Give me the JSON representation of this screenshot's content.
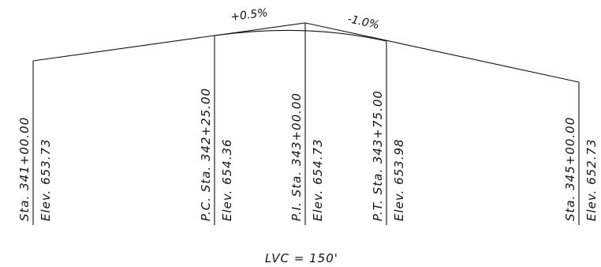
{
  "grades": {
    "back": "+0.5%",
    "forward": "-1.0%"
  },
  "stations": [
    {
      "station": "Sta. 341+00.00",
      "elevation": "Elev. 653.73"
    },
    {
      "station": "P.C. Sta. 342+25.00",
      "elevation": "Elev. 654.36"
    },
    {
      "station": "P.I. Sta. 343+00.00",
      "elevation": "Elev. 654.73"
    },
    {
      "station": "P.T. Sta. 343+75.00",
      "elevation": "Elev. 653.98"
    },
    {
      "station": "Sta. 345+00.00",
      "elevation": "Elev. 652.73"
    }
  ],
  "lvc": "LVC  =  150'"
}
